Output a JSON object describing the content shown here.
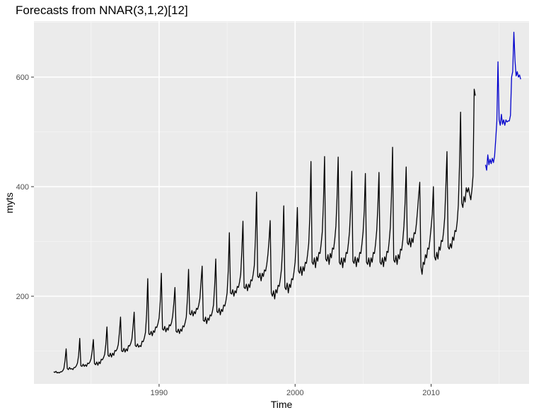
{
  "chart_data": {
    "type": "line",
    "title": "Forecasts from NNAR(3,1,2)[12]",
    "xlabel": "Time",
    "ylabel": "myts",
    "xlim": [
      1980.8,
      2017.2
    ],
    "ylim": [
      40,
      702
    ],
    "x_ticks": [
      1990,
      2000,
      2010
    ],
    "y_ticks": [
      200,
      400,
      600
    ],
    "grid": true,
    "legend": "none",
    "colors": {
      "panel": "#ebebeb",
      "grid_major": "#ffffff",
      "history": "#000000",
      "forecast": "#0000cd",
      "tick_text": "#4d4d4d"
    },
    "history_start": 1982.25,
    "forecast_start": 2014.0,
    "series": [
      {
        "values": [
          62,
          61,
          63,
          60,
          61,
          60,
          62,
          62,
          64,
          68,
          82,
          104,
          68,
          66,
          70,
          67,
          68,
          66,
          70,
          70,
          73,
          78,
          92,
          123,
          73,
          72,
          76,
          72,
          75,
          72,
          78,
          77,
          80,
          86,
          100,
          121,
          77,
          75,
          80,
          74,
          80,
          77,
          85,
          84,
          88,
          94,
          112,
          144,
          92,
          90,
          96,
          89,
          96,
          92,
          101,
          100,
          104,
          112,
          134,
          162,
          100,
          99,
          105,
          98,
          104,
          100,
          110,
          109,
          114,
          122,
          144,
          171,
          110,
          108,
          113,
          107,
          110,
          108,
          118,
          117,
          124,
          134,
          167,
          232,
          131,
          130,
          136,
          128,
          137,
          134,
          144,
          143,
          150,
          160,
          190,
          242,
          140,
          138,
          145,
          135,
          142,
          138,
          148,
          146,
          152,
          164,
          187,
          216,
          136,
          134,
          140,
          132,
          140,
          136,
          146,
          144,
          152,
          162,
          196,
          249,
          168,
          166,
          174,
          164,
          172,
          168,
          178,
          176,
          184,
          196,
          226,
          255,
          156,
          154,
          162,
          150,
          160,
          156,
          166,
          164,
          172,
          184,
          218,
          268,
          172,
          170,
          178,
          166,
          176,
          172,
          184,
          182,
          192,
          206,
          246,
          316,
          206,
          204,
          212,
          200,
          210,
          206,
          218,
          216,
          226,
          240,
          282,
          337,
          216,
          214,
          222,
          210,
          222,
          216,
          230,
          228,
          240,
          256,
          306,
          390,
          236,
          234,
          242,
          228,
          242,
          236,
          248,
          246,
          258,
          276,
          302,
          338,
          206,
          200,
          210,
          195,
          212,
          206,
          220,
          218,
          232,
          250,
          290,
          365,
          216,
          212,
          224,
          206,
          222,
          216,
          232,
          230,
          244,
          262,
          302,
          362,
          246,
          242,
          254,
          238,
          254,
          246,
          262,
          260,
          276,
          296,
          346,
          446,
          262,
          258,
          270,
          252,
          272,
          264,
          280,
          278,
          296,
          318,
          370,
          455,
          268,
          264,
          276,
          258,
          278,
          270,
          288,
          286,
          304,
          328,
          380,
          454,
          262,
          258,
          270,
          252,
          270,
          262,
          280,
          278,
          296,
          318,
          360,
          428,
          264,
          260,
          272,
          254,
          270,
          262,
          280,
          278,
          296,
          318,
          356,
          424,
          262,
          258,
          270,
          254,
          270,
          262,
          280,
          278,
          296,
          320,
          364,
          426,
          262,
          258,
          270,
          254,
          272,
          264,
          282,
          280,
          300,
          326,
          382,
          472,
          266,
          262,
          274,
          258,
          276,
          268,
          286,
          284,
          302,
          328,
          370,
          436,
          298,
          294,
          306,
          290,
          306,
          298,
          316,
          314,
          332,
          356,
          384,
          408,
          254,
          240,
          262,
          258,
          276,
          270,
          288,
          286,
          304,
          326,
          350,
          400,
          272,
          266,
          280,
          268,
          290,
          284,
          302,
          300,
          318,
          344,
          400,
          464,
          290,
          286,
          296,
          288,
          308,
          302,
          320,
          318,
          336,
          366,
          436,
          536,
          370,
          362,
          382,
          372,
          398,
          390,
          398,
          386,
          376,
          394,
          420,
          578,
          566
        ]
      },
      {
        "values": [
          440,
          430,
          458,
          440,
          450,
          442,
          452,
          444,
          456,
          486,
          520,
          628,
          522,
          512,
          532,
          514,
          522,
          512,
          522,
          518,
          520,
          520,
          530,
          600,
          610,
          682,
          630,
          602,
          610,
          600,
          604,
          596
        ]
      }
    ]
  }
}
